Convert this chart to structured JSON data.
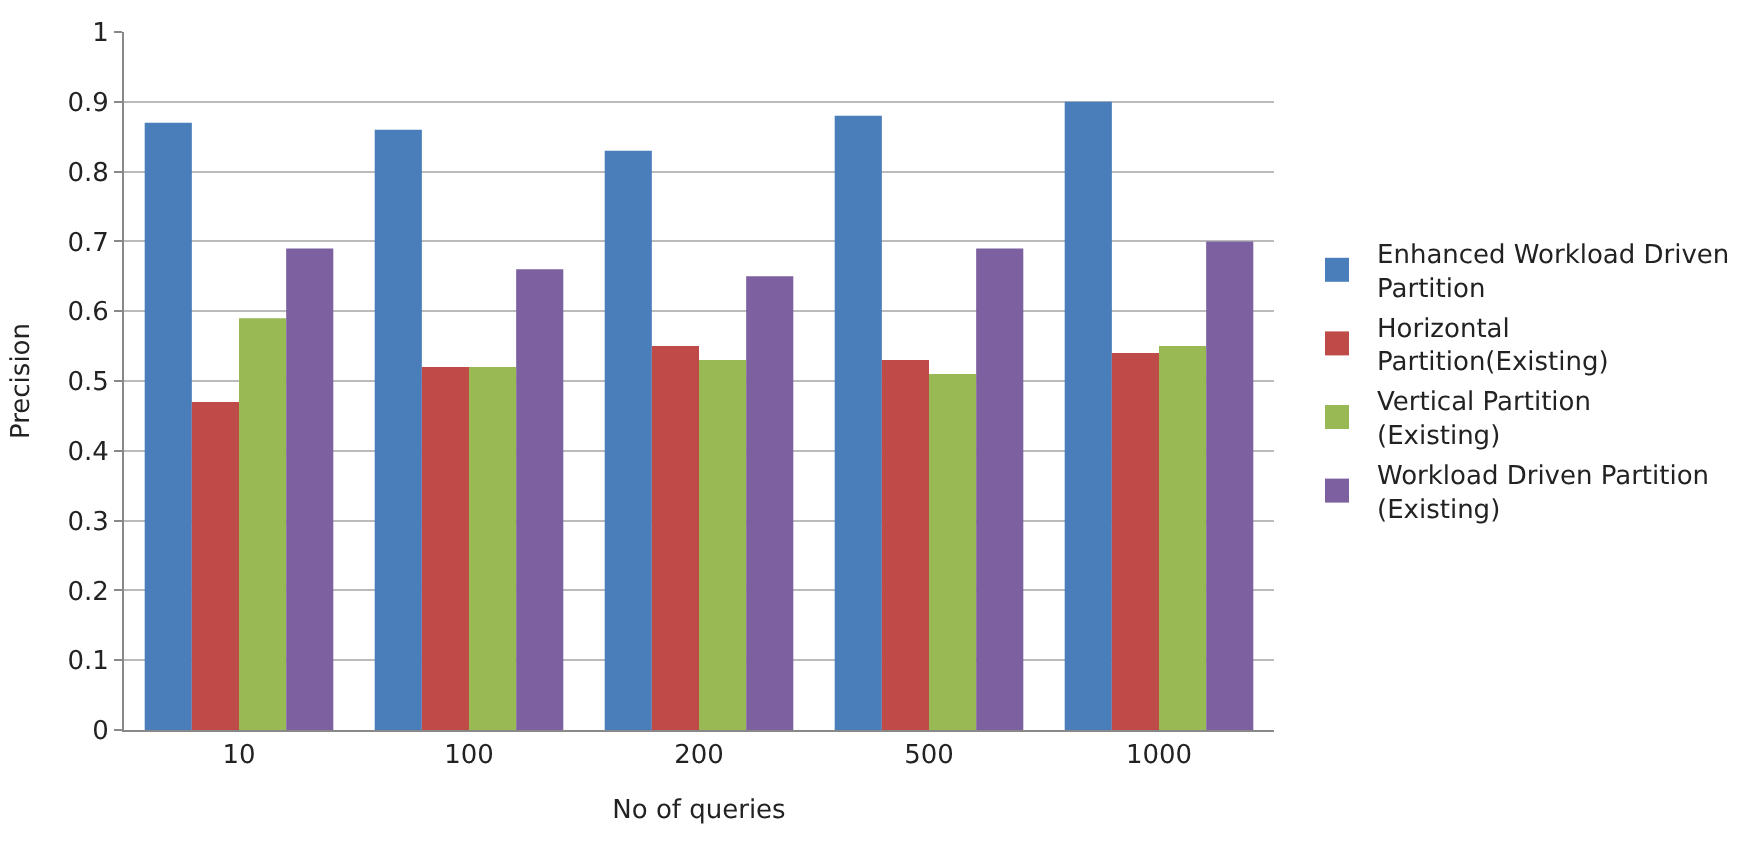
{
  "chart_data": {
    "type": "bar",
    "xlabel": "No of queries",
    "ylabel": "Precision",
    "categories": [
      "10",
      "100",
      "200",
      "500",
      "1000"
    ],
    "series": [
      {
        "name": "Enhanced Workload Driven Partition",
        "color": "#4a7ebb",
        "values": [
          0.87,
          0.86,
          0.83,
          0.88,
          0.9
        ]
      },
      {
        "name": "Horizontal Partition(Existing)",
        "color": "#be4b48",
        "values": [
          0.47,
          0.52,
          0.55,
          0.53,
          0.54
        ]
      },
      {
        "name": "Vertical Partition (Existing)",
        "color": "#98b954",
        "values": [
          0.59,
          0.52,
          0.53,
          0.51,
          0.55
        ]
      },
      {
        "name": "Workload Driven Partition (Existing)",
        "color": "#7d60a0",
        "values": [
          0.69,
          0.66,
          0.65,
          0.69,
          0.7
        ]
      }
    ],
    "ylim": [
      0,
      1
    ],
    "yticks": [
      0,
      0.1,
      0.2,
      0.3,
      0.4,
      0.5,
      0.6,
      0.7,
      0.8,
      0.9,
      1
    ],
    "grid": "y",
    "legend": "right"
  }
}
